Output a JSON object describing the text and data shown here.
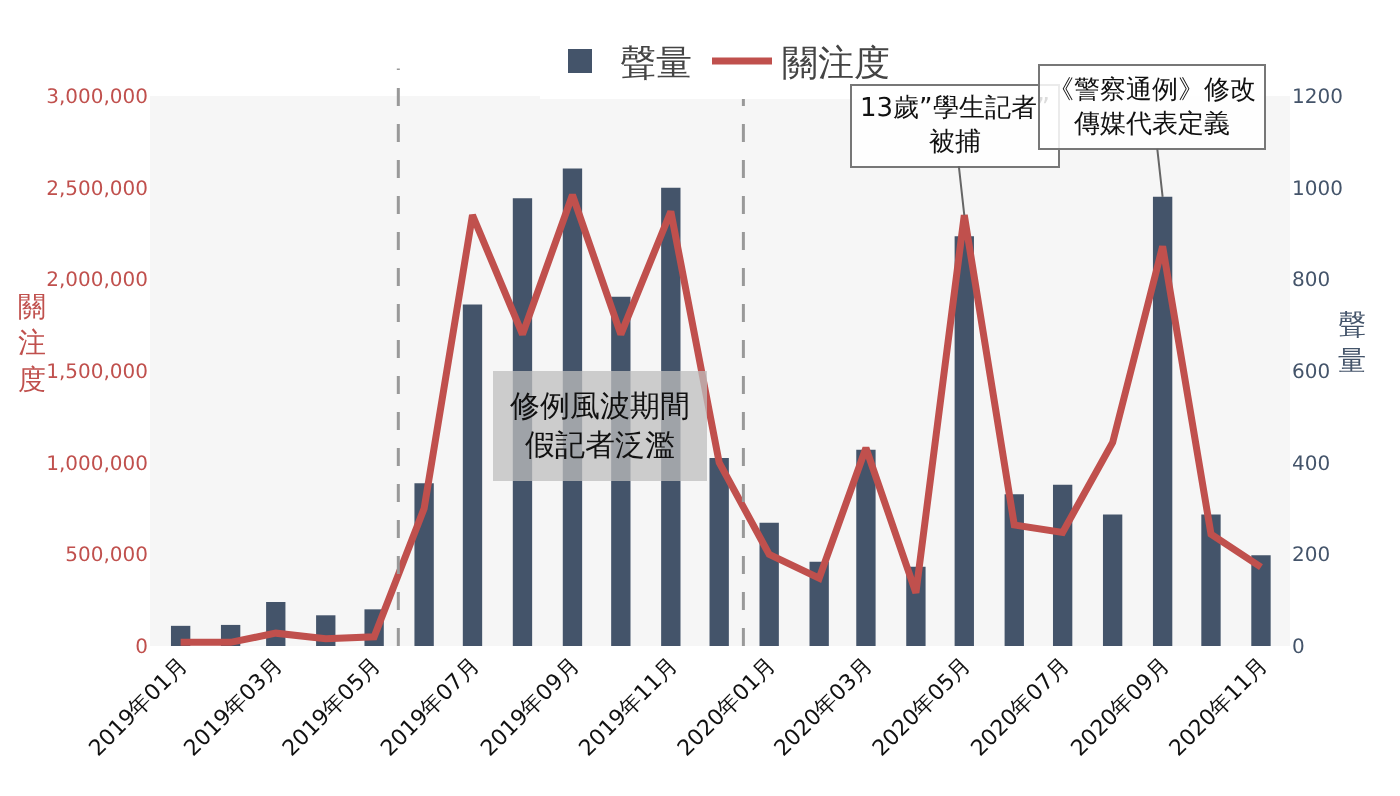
{
  "chart_data": {
    "type": "bar",
    "x": [
      "2019-01",
      "2019-02",
      "2019-03",
      "2019-04",
      "2019-05",
      "2019-06",
      "2019-07",
      "2019-08",
      "2019-09",
      "2019-10",
      "2019-11",
      "2019-12",
      "2020-01",
      "2020-02",
      "2020-03",
      "2020-04",
      "2020-05",
      "2020-06",
      "2020-07",
      "2020-08",
      "2020-09",
      "2020-10",
      "2020-11"
    ],
    "xlim": [
      "2018-12-13",
      "2020-11-19"
    ],
    "xticks": [
      {
        "value": "2019-01",
        "label": "2019年01月"
      },
      {
        "value": "2019-03",
        "label": "2019年03月"
      },
      {
        "value": "2019-05",
        "label": "2019年05月"
      },
      {
        "value": "2019-07",
        "label": "2019年07月"
      },
      {
        "value": "2019-09",
        "label": "2019年09月"
      },
      {
        "value": "2019-11",
        "label": "2019年11月"
      },
      {
        "value": "2020-01",
        "label": "2020年01月"
      },
      {
        "value": "2020-03",
        "label": "2020年03月"
      },
      {
        "value": "2020-05",
        "label": "2020年05月"
      },
      {
        "value": "2020-07",
        "label": "2020年07月"
      },
      {
        "value": "2020-09",
        "label": "2020年09月"
      },
      {
        "value": "2020-11",
        "label": "2020年11月"
      }
    ],
    "series": [
      {
        "name": "聲量",
        "axis": "y2",
        "color": "#44546a",
        "values": [
          44,
          46,
          96,
          67,
          80,
          355,
          745,
          977,
          1042,
          762,
          1000,
          410,
          269,
          184,
          428,
          173,
          894,
          331,
          352,
          287,
          980,
          287,
          198
        ]
      },
      {
        "name": "關注度",
        "type": "line",
        "color": "#c0504d",
        "values": [
          20000,
          20000,
          70000,
          40000,
          50000,
          750000,
          2350000,
          1700000,
          2460000,
          1700000,
          2370000,
          1000000,
          500000,
          370000,
          1080000,
          290000,
          2350000,
          660000,
          620000,
          1110000,
          2180000,
          610000,
          430000
        ]
      }
    ],
    "ylabel": "關注度",
    "y2label": "聲量",
    "ylim": [
      0,
      3000000
    ],
    "yticks": [
      {
        "value": 0,
        "label": "0"
      },
      {
        "value": 500000,
        "label": "500,000"
      },
      {
        "value": 1000000,
        "label": "1,000,000"
      },
      {
        "value": 1500000,
        "label": "1,500,000"
      },
      {
        "value": 2000000,
        "label": "2,000,000"
      },
      {
        "value": 2500000,
        "label": "2,500,000"
      },
      {
        "value": 3000000,
        "label": "3,000,000"
      }
    ],
    "y2lim": [
      0,
      1200
    ],
    "y2ticks": [
      0,
      200,
      400,
      600,
      800,
      1000,
      1200
    ],
    "ref_lines": [
      {
        "axis": "x",
        "value": "2019-05-16",
        "line_style": "dashed",
        "color": "#999999"
      },
      {
        "axis": "x",
        "value": "2019-12-16",
        "line_style": "dashed",
        "color": "#999999"
      }
    ],
    "annotations": [
      "修例風波期間假記者泛濫",
      {
        "text": "13歲”學生記者”被捕",
        "x": "2020-05",
        "y": 2350000
      },
      {
        "text": "《警察通例》修改傳媒代表定義",
        "x": "2020-09",
        "y": 2450000
      }
    ],
    "legend": "top",
    "grid": false
  }
}
